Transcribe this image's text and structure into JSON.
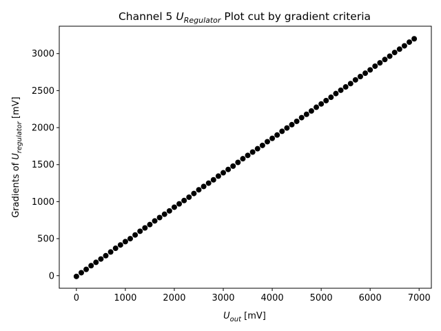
{
  "chart_data": {
    "type": "scatter",
    "title": {
      "prefix": "Channel 5 ",
      "symbol": "U",
      "subscript": "Regulator",
      "suffix": " Plot cut by gradient criteria"
    },
    "xlabel": {
      "symbol": "U",
      "subscript": "out",
      "suffix": " [mV]"
    },
    "ylabel": {
      "prefix": "Gradients of ",
      "symbol": "U",
      "subscript": "regulator",
      "suffix": " [mV]"
    },
    "xlim": [
      -350,
      7250
    ],
    "ylim": [
      -170,
      3370
    ],
    "xticks": [
      0,
      1000,
      2000,
      3000,
      4000,
      5000,
      6000,
      7000
    ],
    "xtick_labels": [
      "0",
      "1000",
      "2000",
      "3000",
      "4000",
      "5000",
      "6000",
      "7000"
    ],
    "yticks": [
      0,
      500,
      1000,
      1500,
      2000,
      2500,
      3000
    ],
    "ytick_labels": [
      "0",
      "500",
      "1000",
      "1500",
      "2000",
      "2500",
      "3000"
    ],
    "grid": false,
    "marker_color": "#000000",
    "series": [
      {
        "x": [
          0,
          100,
          200,
          300,
          400,
          500,
          600,
          700,
          800,
          900,
          1000,
          1100,
          1200,
          1300,
          1400,
          1500,
          1600,
          1700,
          1800,
          1900,
          2000,
          2100,
          2200,
          2300,
          2400,
          2500,
          2600,
          2700,
          2800,
          2900,
          3000,
          3100,
          3200,
          3300,
          3400,
          3500,
          3600,
          3700,
          3800,
          3900,
          4000,
          4100,
          4200,
          4300,
          4400,
          4500,
          4600,
          4700,
          4800,
          4900,
          5000,
          5100,
          5200,
          5300,
          5400,
          5500,
          5600,
          5700,
          5800,
          5900,
          6000,
          6100,
          6200,
          6300,
          6400,
          6500,
          6600,
          6700,
          6800,
          6900
        ],
        "y": [
          -10,
          40,
          85,
          135,
          180,
          225,
          270,
          320,
          370,
          415,
          460,
          500,
          550,
          600,
          645,
          690,
          740,
          785,
          830,
          875,
          925,
          970,
          1015,
          1060,
          1110,
          1160,
          1205,
          1250,
          1295,
          1345,
          1390,
          1435,
          1480,
          1530,
          1580,
          1625,
          1670,
          1715,
          1760,
          1810,
          1855,
          1900,
          1950,
          1995,
          2040,
          2085,
          2135,
          2180,
          2225,
          2275,
          2320,
          2365,
          2410,
          2460,
          2505,
          2550,
          2595,
          2645,
          2690,
          2735,
          2780,
          2830,
          2875,
          2920,
          2965,
          3015,
          3060,
          3105,
          3155,
          3200
        ]
      }
    ]
  }
}
